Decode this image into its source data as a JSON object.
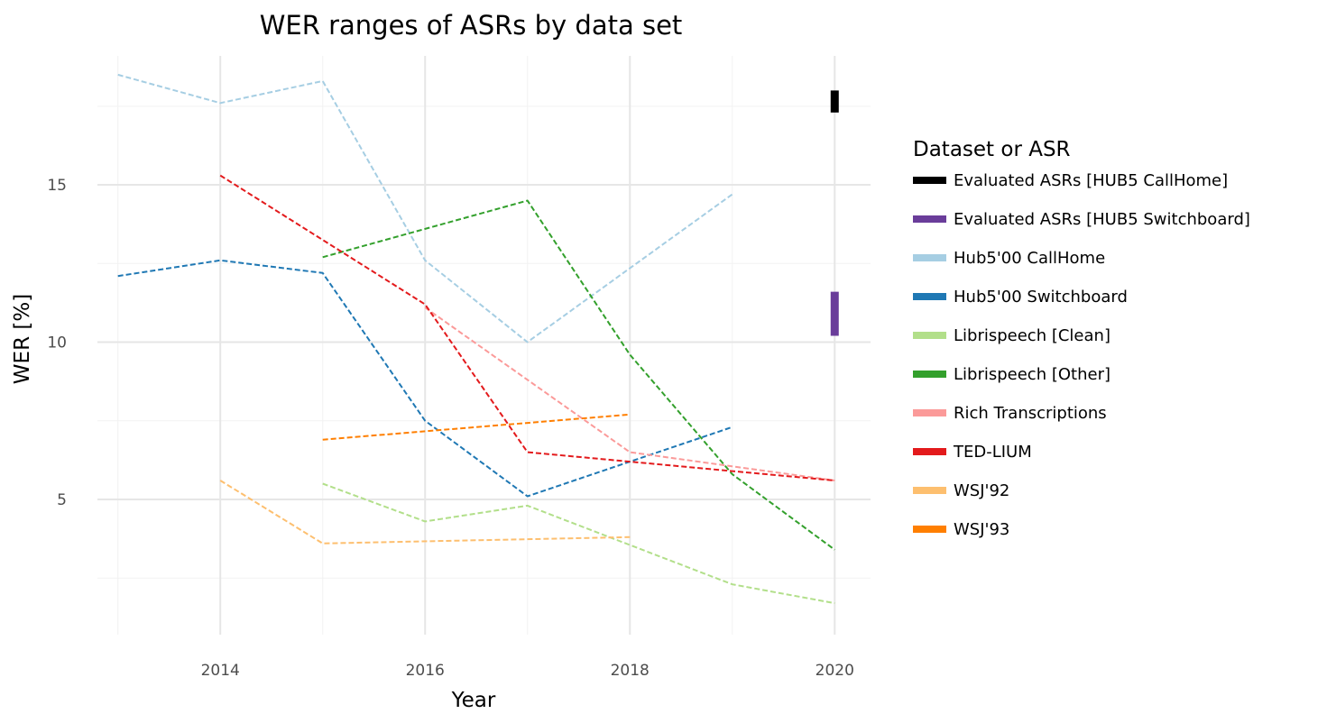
{
  "chart_data": {
    "type": "line",
    "title": "WER ranges of ASRs by data set",
    "xlabel": "Year",
    "ylabel": "WER [%]",
    "xlim": [
      2012.8,
      2020.35
    ],
    "ylim": [
      0.7,
      19.1
    ],
    "x_ticks": [
      2014,
      2016,
      2018,
      2020
    ],
    "y_ticks": [
      5,
      10,
      15
    ],
    "grid": true,
    "legend_title": "Dataset or ASR",
    "legend_position": "right",
    "series": [
      {
        "name": "Hub5'00 CallHome",
        "color": "#a6cee3",
        "style": "dashed",
        "points": [
          [
            2013,
            18.5
          ],
          [
            2014,
            17.6
          ],
          [
            2015,
            18.3
          ],
          [
            2016,
            12.6
          ],
          [
            2017,
            10.0
          ],
          [
            2019,
            14.7
          ]
        ]
      },
      {
        "name": "Hub5'00 Switchboard",
        "color": "#1f78b4",
        "style": "dashed",
        "points": [
          [
            2013,
            12.1
          ],
          [
            2014,
            12.6
          ],
          [
            2015,
            12.2
          ],
          [
            2016,
            7.5
          ],
          [
            2017,
            5.1
          ],
          [
            2019,
            7.3
          ]
        ]
      },
      {
        "name": "Librispeech [Clean]",
        "color": "#b2df8a",
        "style": "dashed",
        "points": [
          [
            2015,
            5.5
          ],
          [
            2016,
            4.3
          ],
          [
            2017,
            4.8
          ],
          [
            2019,
            2.3
          ],
          [
            2020,
            1.7
          ]
        ]
      },
      {
        "name": "Librispeech [Other]",
        "color": "#33a02c",
        "style": "dashed",
        "points": [
          [
            2015,
            12.7
          ],
          [
            2017,
            14.5
          ],
          [
            2018,
            9.6
          ],
          [
            2019,
            5.8
          ],
          [
            2020,
            3.4
          ]
        ]
      },
      {
        "name": "Rich Transcriptions",
        "color": "#fb9a99",
        "style": "dashed",
        "points": [
          [
            2016,
            11.1
          ],
          [
            2018,
            6.5
          ],
          [
            2020,
            5.6
          ]
        ]
      },
      {
        "name": "TED-LIUM",
        "color": "#e31a1c",
        "style": "dashed",
        "points": [
          [
            2014,
            15.3
          ],
          [
            2016,
            11.2
          ],
          [
            2017,
            6.5
          ],
          [
            2019,
            5.9
          ],
          [
            2020,
            5.6
          ]
        ]
      },
      {
        "name": "WSJ'92",
        "color": "#fdbf6f",
        "style": "dashed",
        "points": [
          [
            2014,
            5.6
          ],
          [
            2015,
            3.6
          ],
          [
            2018,
            3.8
          ]
        ]
      },
      {
        "name": "WSJ'93",
        "color": "#ff7f00",
        "style": "dashed",
        "points": [
          [
            2015,
            6.9
          ],
          [
            2018,
            7.7
          ]
        ]
      }
    ],
    "ranges": [
      {
        "name": "Evaluated ASRs [HUB5 CallHome]",
        "color": "#000000",
        "x": 2020,
        "ymin": 17.3,
        "ymax": 18.0
      },
      {
        "name": "Evaluated ASRs [HUB5 Switchboard]",
        "color": "#6a3d9a",
        "x": 2020,
        "ymin": 10.2,
        "ymax": 11.6
      }
    ],
    "legend_order": [
      "Evaluated ASRs [HUB5 CallHome]",
      "Evaluated ASRs [HUB5 Switchboard]",
      "Hub5'00 CallHome",
      "Hub5'00 Switchboard",
      "Librispeech [Clean]",
      "Librispeech [Other]",
      "Rich Transcriptions",
      "TED-LIUM",
      "WSJ'92",
      "WSJ'93"
    ]
  }
}
